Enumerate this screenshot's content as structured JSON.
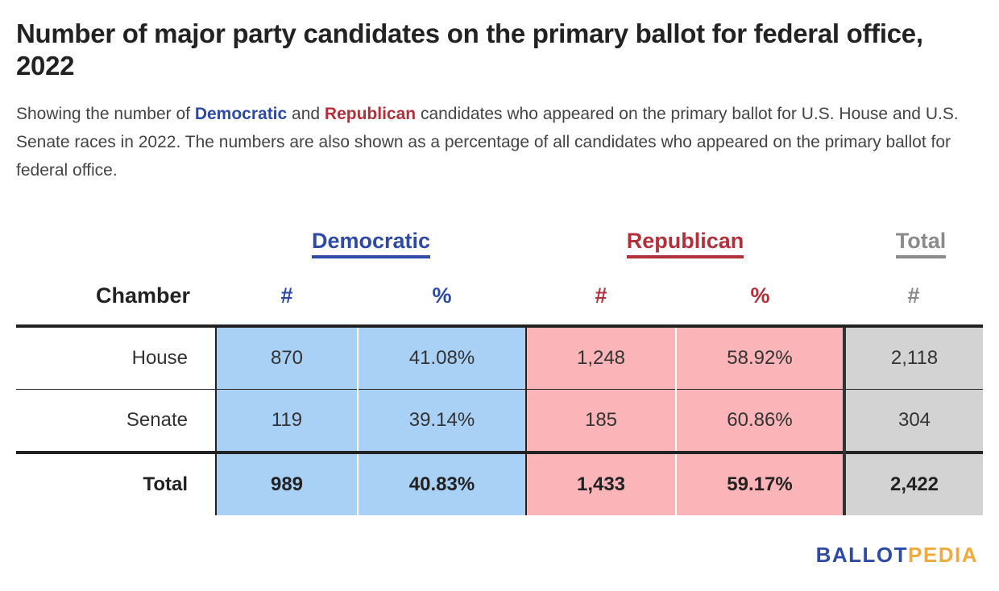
{
  "title": "Number of major party candidates on the primary ballot for federal office, 2022",
  "subtitle": {
    "part1": "Showing the number of ",
    "dem_word": "Democratic",
    "part2": " and ",
    "rep_word": "Republican",
    "part3": " candidates who appeared on the primary ballot for U.S. House and U.S. Senate races in 2022. The numbers are also shown as a percentage of all candidates who appeared on the primary ballot for federal office."
  },
  "colors": {
    "democratic": "#2d4aa8",
    "republican": "#b3303b",
    "total": "#8a8a8a",
    "democratic_fill": "#a9d0f5",
    "republican_fill": "#fbb4b8",
    "total_fill": "#d3d3d3"
  },
  "chart_data": {
    "type": "table",
    "groups": [
      "Democratic",
      "Republican",
      "Total"
    ],
    "columns": [
      "Chamber",
      "#",
      "%",
      "#",
      "%",
      "#"
    ],
    "rows": [
      [
        "House",
        "870",
        "41.08%",
        "1,248",
        "58.92%",
        "2,118"
      ],
      [
        "Senate",
        "119",
        "39.14%",
        "185",
        "60.86%",
        "304"
      ],
      [
        "Total",
        "989",
        "40.83%",
        "1,433",
        "59.17%",
        "2,422"
      ]
    ]
  },
  "logo": {
    "part1": "BALLOT",
    "part2": "PEDIA"
  }
}
